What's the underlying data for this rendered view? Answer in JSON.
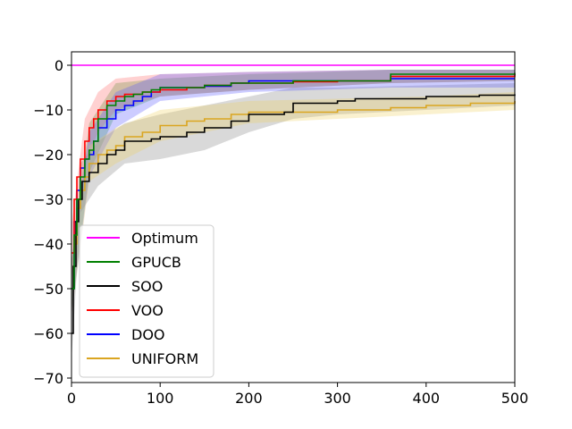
{
  "chart_data": {
    "type": "line",
    "title": "",
    "xlabel": "",
    "ylabel": "",
    "xlim": [
      0,
      500
    ],
    "ylim": [
      -71,
      3
    ],
    "xticks": [
      0,
      100,
      200,
      300,
      400,
      500
    ],
    "yticks": [
      0,
      -10,
      -20,
      -30,
      -40,
      -50,
      -60,
      -70
    ],
    "grid": false,
    "legend_position": "lower-left",
    "series": [
      {
        "name": "Optimum",
        "color": "#ff00ff",
        "step": false,
        "points": [
          [
            0,
            0
          ],
          [
            500,
            0
          ]
        ]
      },
      {
        "name": "GPUCB",
        "color": "#008000",
        "band": "#2ca02c",
        "points": [
          [
            0,
            -50
          ],
          [
            3,
            -38
          ],
          [
            6,
            -30
          ],
          [
            10,
            -25
          ],
          [
            15,
            -21
          ],
          [
            20,
            -19
          ],
          [
            25,
            -17
          ],
          [
            30,
            -12
          ],
          [
            40,
            -9
          ],
          [
            50,
            -8
          ],
          [
            60,
            -7
          ],
          [
            70,
            -6.5
          ],
          [
            80,
            -6
          ],
          [
            90,
            -5.5
          ],
          [
            100,
            -5
          ],
          [
            150,
            -4.5
          ],
          [
            180,
            -4
          ],
          [
            250,
            -3.5
          ],
          [
            300,
            -3.5
          ],
          [
            360,
            -2
          ],
          [
            500,
            -1.7
          ]
        ],
        "lower": [
          [
            0,
            -55
          ],
          [
            20,
            -24
          ],
          [
            50,
            -11
          ],
          [
            100,
            -7
          ],
          [
            200,
            -5.5
          ],
          [
            360,
            -4
          ],
          [
            500,
            -3.5
          ]
        ],
        "upper": [
          [
            0,
            -44
          ],
          [
            20,
            -13
          ],
          [
            50,
            -4
          ],
          [
            100,
            -3
          ],
          [
            200,
            -2
          ],
          [
            360,
            -1
          ],
          [
            500,
            -1
          ]
        ]
      },
      {
        "name": "SOO",
        "color": "#000000",
        "band": "#808080",
        "points": [
          [
            0,
            -60
          ],
          [
            2,
            -45
          ],
          [
            5,
            -35
          ],
          [
            8,
            -30
          ],
          [
            12,
            -26
          ],
          [
            20,
            -24
          ],
          [
            30,
            -22
          ],
          [
            40,
            -20
          ],
          [
            50,
            -19
          ],
          [
            60,
            -17
          ],
          [
            90,
            -16.5
          ],
          [
            100,
            -16
          ],
          [
            130,
            -15
          ],
          [
            150,
            -14
          ],
          [
            180,
            -12.5
          ],
          [
            200,
            -11
          ],
          [
            240,
            -10.5
          ],
          [
            250,
            -8.5
          ],
          [
            300,
            -8
          ],
          [
            320,
            -7.5
          ],
          [
            400,
            -7
          ],
          [
            460,
            -6.7
          ],
          [
            500,
            -6.5
          ]
        ],
        "lower": [
          [
            0,
            -66
          ],
          [
            10,
            -33
          ],
          [
            30,
            -27
          ],
          [
            60,
            -22
          ],
          [
            100,
            -21
          ],
          [
            150,
            -19
          ],
          [
            200,
            -15
          ],
          [
            250,
            -12
          ],
          [
            300,
            -11
          ],
          [
            400,
            -10
          ],
          [
            500,
            -9
          ]
        ],
        "upper": [
          [
            0,
            -54
          ],
          [
            10,
            -22
          ],
          [
            30,
            -17
          ],
          [
            60,
            -13
          ],
          [
            100,
            -11
          ],
          [
            150,
            -9
          ],
          [
            200,
            -7
          ],
          [
            250,
            -5
          ],
          [
            300,
            -5
          ],
          [
            400,
            -4.5
          ],
          [
            500,
            -4
          ]
        ]
      },
      {
        "name": "VOO",
        "color": "#ff0000",
        "band": "#ff6666",
        "points": [
          [
            0,
            -42
          ],
          [
            3,
            -30
          ],
          [
            6,
            -25
          ],
          [
            10,
            -21
          ],
          [
            15,
            -17
          ],
          [
            20,
            -14
          ],
          [
            25,
            -12
          ],
          [
            30,
            -10
          ],
          [
            40,
            -8
          ],
          [
            50,
            -7
          ],
          [
            60,
            -6.5
          ],
          [
            80,
            -6
          ],
          [
            100,
            -5.5
          ],
          [
            130,
            -5
          ],
          [
            150,
            -4.5
          ],
          [
            180,
            -4
          ],
          [
            250,
            -3.7
          ],
          [
            300,
            -3.5
          ],
          [
            360,
            -2.5
          ],
          [
            500,
            -2
          ]
        ],
        "lower": [
          [
            0,
            -48
          ],
          [
            15,
            -22
          ],
          [
            30,
            -15
          ],
          [
            50,
            -10
          ],
          [
            100,
            -7
          ],
          [
            200,
            -5.5
          ],
          [
            360,
            -4
          ],
          [
            500,
            -3.5
          ]
        ],
        "upper": [
          [
            0,
            -36
          ],
          [
            15,
            -12
          ],
          [
            30,
            -6
          ],
          [
            50,
            -3
          ],
          [
            100,
            -2
          ],
          [
            200,
            -1.5
          ],
          [
            360,
            -1
          ],
          [
            500,
            -1
          ]
        ]
      },
      {
        "name": "DOO",
        "color": "#0000ff",
        "band": "#5555ff",
        "points": [
          [
            0,
            -50
          ],
          [
            3,
            -35
          ],
          [
            6,
            -28
          ],
          [
            10,
            -23
          ],
          [
            15,
            -21
          ],
          [
            20,
            -20
          ],
          [
            25,
            -17
          ],
          [
            30,
            -14
          ],
          [
            40,
            -12
          ],
          [
            50,
            -10
          ],
          [
            60,
            -9
          ],
          [
            70,
            -8
          ],
          [
            80,
            -7
          ],
          [
            90,
            -6
          ],
          [
            100,
            -5
          ],
          [
            150,
            -4.7
          ],
          [
            180,
            -4
          ],
          [
            200,
            -3.5
          ],
          [
            300,
            -3.5
          ],
          [
            360,
            -3
          ],
          [
            500,
            -3
          ]
        ],
        "lower": [
          [
            0,
            -56
          ],
          [
            20,
            -25
          ],
          [
            50,
            -14
          ],
          [
            100,
            -8
          ],
          [
            200,
            -6
          ],
          [
            360,
            -5
          ],
          [
            500,
            -5
          ]
        ],
        "upper": [
          [
            0,
            -44
          ],
          [
            20,
            -15
          ],
          [
            50,
            -6
          ],
          [
            100,
            -2
          ],
          [
            200,
            -1.5
          ],
          [
            360,
            -1
          ],
          [
            500,
            -1
          ]
        ]
      },
      {
        "name": "UNIFORM",
        "color": "#daa520",
        "band": "#f0d060",
        "points": [
          [
            0,
            -50
          ],
          [
            3,
            -40
          ],
          [
            6,
            -32
          ],
          [
            10,
            -28
          ],
          [
            15,
            -25
          ],
          [
            20,
            -22
          ],
          [
            30,
            -20
          ],
          [
            40,
            -19
          ],
          [
            50,
            -18
          ],
          [
            60,
            -16
          ],
          [
            80,
            -15
          ],
          [
            100,
            -13.5
          ],
          [
            130,
            -12.5
          ],
          [
            150,
            -12
          ],
          [
            180,
            -11
          ],
          [
            200,
            -10.5
          ],
          [
            300,
            -10
          ],
          [
            360,
            -9.5
          ],
          [
            400,
            -9
          ],
          [
            450,
            -8.5
          ],
          [
            500,
            -8
          ]
        ],
        "lower": [
          [
            0,
            -56
          ],
          [
            20,
            -26
          ],
          [
            50,
            -22
          ],
          [
            100,
            -17
          ],
          [
            200,
            -13
          ],
          [
            300,
            -12
          ],
          [
            400,
            -11
          ],
          [
            500,
            -10
          ]
        ],
        "upper": [
          [
            0,
            -44
          ],
          [
            20,
            -18
          ],
          [
            50,
            -14
          ],
          [
            100,
            -10
          ],
          [
            200,
            -8
          ],
          [
            300,
            -7.5
          ],
          [
            400,
            -7
          ],
          [
            500,
            -6
          ]
        ]
      }
    ]
  }
}
